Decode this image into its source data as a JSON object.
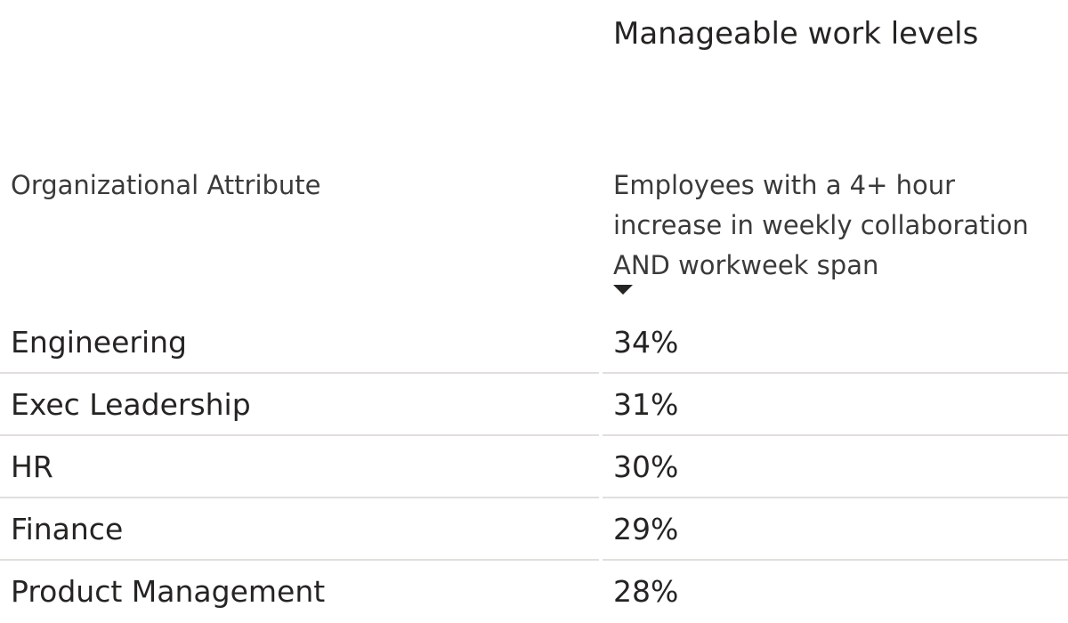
{
  "chart_data": {
    "type": "table",
    "group_header": "Manageable work levels",
    "columns": [
      "Organizational Attribute",
      "Employees with a 4+ hour increase in weekly collaboration AND workweek span"
    ],
    "sort": {
      "column": 1,
      "direction": "descending"
    },
    "rows": [
      {
        "attribute": "Engineering",
        "value": "34%"
      },
      {
        "attribute": "Exec Leadership",
        "value": "31%"
      },
      {
        "attribute": "HR",
        "value": "30%"
      },
      {
        "attribute": "Finance",
        "value": "29%"
      },
      {
        "attribute": "Product Management",
        "value": "28%"
      }
    ],
    "categories": [
      "Engineering",
      "Exec Leadership",
      "HR",
      "Finance",
      "Product Management"
    ],
    "values": [
      34,
      31,
      30,
      29,
      28
    ]
  }
}
